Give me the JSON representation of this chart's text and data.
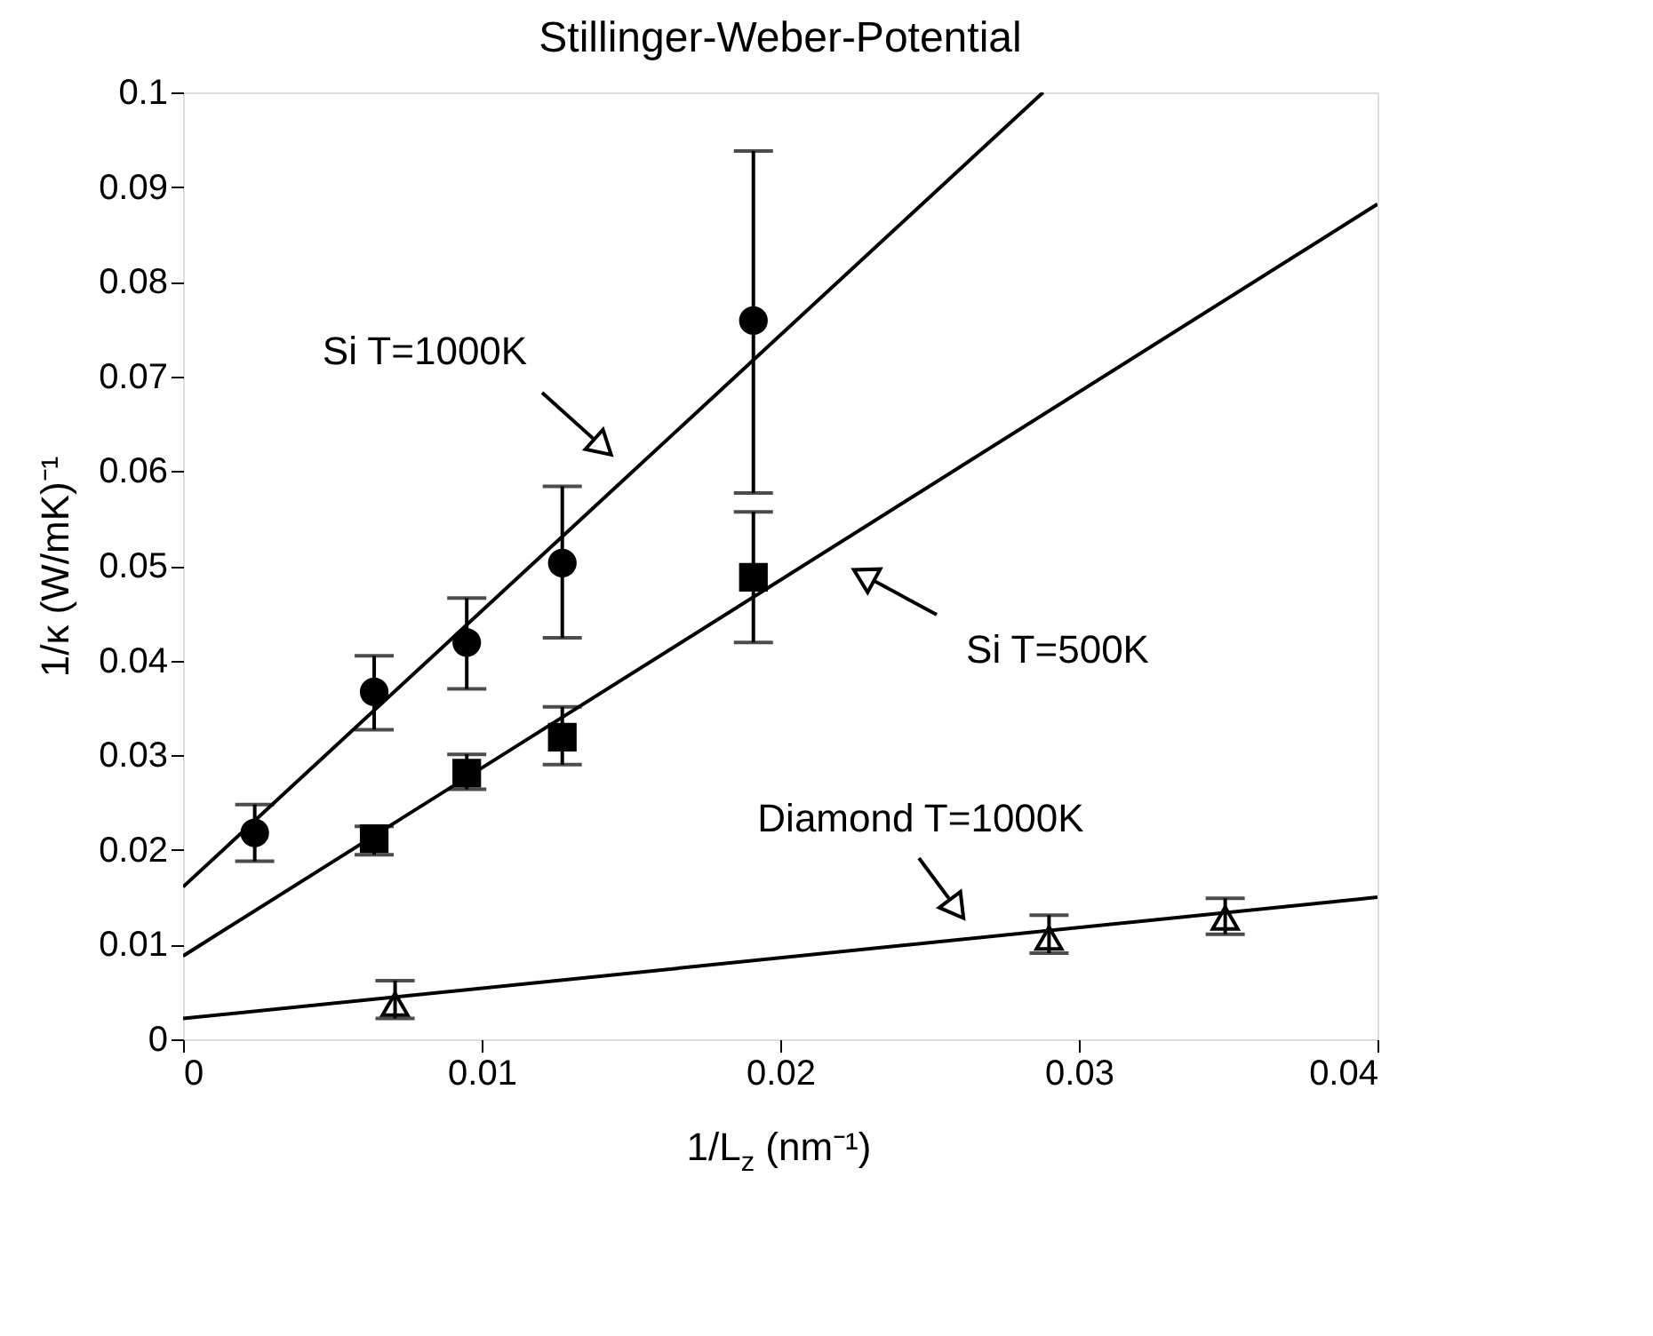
{
  "chart_data": {
    "type": "scatter",
    "title": "Stillinger-Weber-Potential",
    "xlabel": "1/L$_{z}$ (nm⁻¹)",
    "ylabel": "1/κ (W/mK)⁻¹",
    "xlim": [
      0,
      0.04
    ],
    "xticks": [
      {
        "value": 0,
        "label": "0"
      },
      {
        "value": 0.01,
        "label": "0.01"
      },
      {
        "value": 0.02,
        "label": "0.02"
      },
      {
        "value": 0.03,
        "label": "0.03"
      },
      {
        "value": 0.04,
        "label": "0.04"
      }
    ],
    "ylim": [
      0,
      0.1
    ],
    "yticks": [
      {
        "value": 0,
        "label": "0"
      },
      0.01,
      0.02,
      0.03,
      0.04,
      0.05,
      0.06,
      0.07,
      0.08,
      0.09,
      {
        "value": 0.1,
        "label": "0.1"
      }
    ],
    "grid": false,
    "series": [
      {
        "marker": "circle",
        "color": "#000000",
        "x": [
          0.0024,
          0.0064,
          0.0095,
          0.0127,
          0.0191
        ],
        "values": [
          0.0218,
          0.0367,
          0.0419,
          0.0503,
          0.0759
        ],
        "errors": [
          [
            0.0188,
            0.0248
          ],
          [
            0.0327,
            0.0405
          ],
          [
            0.037,
            0.0466
          ],
          [
            0.0424,
            0.0584
          ],
          [
            0.0577,
            0.0938
          ]
        ]
      },
      {
        "marker": "square",
        "color": "#000000",
        "x": [
          0.0064,
          0.0095,
          0.0127,
          0.0191
        ],
        "values": [
          0.0212,
          0.0281,
          0.0319,
          0.0488
        ],
        "errors": [
          [
            0.0195,
            0.0225
          ],
          [
            0.0264,
            0.0301
          ],
          [
            0.029,
            0.0351
          ],
          [
            0.0419,
            0.0557
          ]
        ]
      },
      {
        "marker": "triangle",
        "color": "#000000",
        "x": [
          0.0071,
          0.029,
          0.0349
        ],
        "values": [
          0.0037,
          0.0107,
          0.0128
        ],
        "errors": [
          [
            0.0022,
            0.0062
          ],
          [
            0.0091,
            0.0131
          ],
          [
            0.0111,
            0.0149
          ]
        ]
      },
      {
        "type": "line",
        "color": "#000000",
        "x": [
          0,
          0.0288
        ],
        "values": [
          0.0161,
          0.1
        ]
      },
      {
        "type": "line",
        "color": "#000000",
        "x": [
          0,
          0.04
        ],
        "values": [
          0.0088,
          0.0882
        ]
      },
      {
        "type": "line",
        "color": "#000000",
        "x": [
          0,
          0.04
        ],
        "values": [
          0.0022,
          0.015
        ]
      }
    ],
    "annotations": [
      "Si T=1000K",
      "Si T=500K",
      "Diamond T=1000K"
    ]
  }
}
